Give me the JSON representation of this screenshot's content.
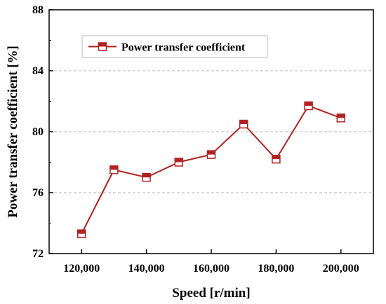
{
  "chart_data": {
    "type": "line",
    "title": "",
    "xlabel": "Speed [r/min]",
    "ylabel": "Power transfer coefficient [%]",
    "x": [
      120000,
      130000,
      140000,
      150000,
      160000,
      170000,
      180000,
      190000,
      200000
    ],
    "series": [
      {
        "name": "Power transfer coefficient",
        "values": [
          73.3,
          77.5,
          77.0,
          78.0,
          78.5,
          80.5,
          78.2,
          81.7,
          80.9
        ],
        "color": "#b22222"
      }
    ],
    "xlim": [
      110000,
      210000
    ],
    "ylim": [
      72,
      88
    ],
    "xticks": [
      120000,
      140000,
      160000,
      180000,
      200000
    ],
    "xtick_labels": [
      "120,000",
      "140,000",
      "160,000",
      "180,000",
      "200,000"
    ],
    "yticks": [
      72,
      76,
      80,
      84,
      88
    ],
    "ytick_labels": [
      "72",
      "76",
      "80",
      "84",
      "88"
    ],
    "grid": "horizontal dashed",
    "legend_position": "top-left"
  }
}
